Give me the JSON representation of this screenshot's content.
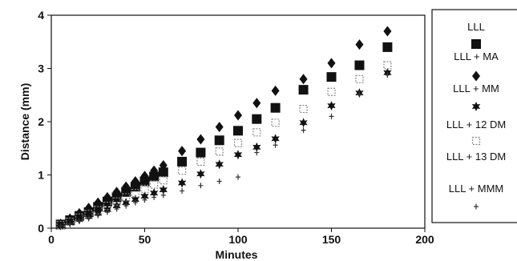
{
  "chart_data": {
    "type": "scatter",
    "xlabel": "Minutes",
    "ylabel": "Distance (mm)",
    "xlim": [
      0,
      200
    ],
    "ylim": [
      0,
      4
    ],
    "x_ticks": [
      "0",
      "50",
      "100",
      "150",
      "200"
    ],
    "y_ticks": [
      "0",
      "1",
      "2",
      "3",
      "4"
    ],
    "grid": false,
    "legend_position": "right",
    "series": [
      {
        "name": "LLL",
        "marker": "square",
        "color": "#111111",
        "x": [
          5,
          10,
          15,
          20,
          25,
          30,
          35,
          40,
          45,
          50,
          55,
          60,
          70,
          80,
          90,
          100,
          110,
          120,
          135,
          150,
          165,
          180
        ],
        "y": [
          0.07,
          0.15,
          0.23,
          0.3,
          0.4,
          0.5,
          0.58,
          0.68,
          0.78,
          0.88,
          0.97,
          1.05,
          1.25,
          1.42,
          1.65,
          1.83,
          2.05,
          2.26,
          2.6,
          2.84,
          3.06,
          3.4
        ]
      },
      {
        "name": "LLL + MA",
        "marker": "diamond",
        "color": "#111111",
        "x": [
          5,
          10,
          15,
          20,
          25,
          30,
          35,
          40,
          45,
          50,
          55,
          60,
          70,
          80,
          90,
          100,
          110,
          120,
          135,
          150,
          165,
          180
        ],
        "y": [
          0.08,
          0.18,
          0.28,
          0.38,
          0.48,
          0.58,
          0.68,
          0.78,
          0.88,
          0.98,
          1.08,
          1.18,
          1.45,
          1.67,
          1.9,
          2.12,
          2.35,
          2.58,
          2.8,
          3.1,
          3.45,
          3.7
        ]
      },
      {
        "name": "LLL + MM",
        "marker": "star",
        "color": "#111111",
        "x": [
          5,
          10,
          15,
          20,
          25,
          30,
          35,
          40,
          45,
          50,
          55,
          60,
          70,
          80,
          90,
          100,
          110,
          120,
          135,
          150,
          165,
          180
        ],
        "y": [
          0.05,
          0.1,
          0.16,
          0.22,
          0.28,
          0.35,
          0.42,
          0.48,
          0.54,
          0.6,
          0.66,
          0.72,
          0.85,
          1.02,
          1.2,
          1.38,
          1.52,
          1.68,
          1.98,
          2.3,
          2.54,
          2.92
        ]
      },
      {
        "name": "LLL + 12 DM",
        "marker": "open-square",
        "color": "#888888",
        "x": [
          5,
          10,
          15,
          20,
          25,
          30,
          35,
          40,
          45,
          50,
          55,
          60,
          70,
          80,
          90,
          100,
          110,
          120,
          135,
          150,
          165,
          180
        ],
        "y": [
          0.06,
          0.12,
          0.2,
          0.27,
          0.34,
          0.42,
          0.5,
          0.58,
          0.66,
          0.74,
          0.82,
          0.9,
          1.08,
          1.25,
          1.44,
          1.6,
          1.8,
          1.98,
          2.24,
          2.56,
          2.8,
          3.06
        ]
      },
      {
        "name": "LLL + 13 DM",
        "marker": "none",
        "color": "#111111",
        "x": [],
        "y": []
      },
      {
        "name": "LLL + MMM",
        "marker": "cross",
        "color": "#333333",
        "x": [
          5,
          10,
          15,
          20,
          25,
          30,
          35,
          40,
          45,
          50,
          55,
          60,
          70,
          80,
          90,
          100,
          110,
          120,
          135,
          150,
          165,
          180
        ],
        "y": [
          0.04,
          0.08,
          0.13,
          0.18,
          0.24,
          0.3,
          0.36,
          0.42,
          0.48,
          0.53,
          0.58,
          0.62,
          0.7,
          0.8,
          0.88,
          0.96,
          1.42,
          1.56,
          1.84,
          2.1,
          2.52,
          2.88
        ]
      }
    ]
  }
}
